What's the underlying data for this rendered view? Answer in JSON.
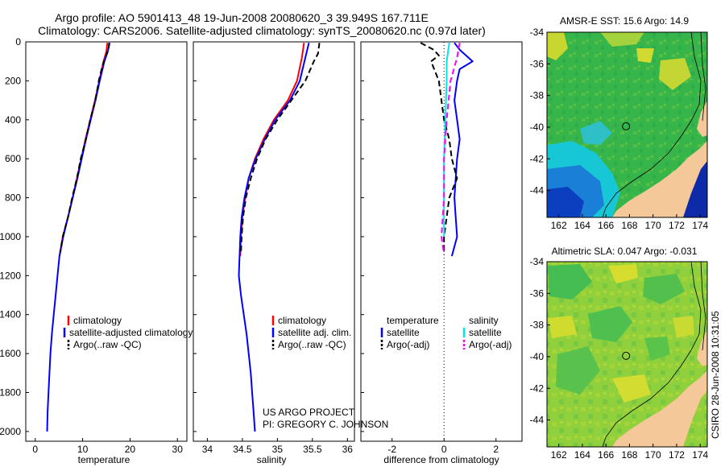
{
  "header": {
    "title_line1": "Argo profile: AO 5901413_48 19-Jun-2008 20080620_3 39.949S 167.711E",
    "title_line2": "Climatology: CARS2006. Satellite-adjusted climatology: synTS_20080620.nc (0.97d later)"
  },
  "credits": {
    "project": "US ARGO PROJECT",
    "pi": "PI: GREGORY C. JOHNSON",
    "stamp": "CSIRO 28-Jun-2008 10:31:05"
  },
  "colors": {
    "climatology": "#ff0000",
    "satellite": "#0000ff",
    "argo": "#000000",
    "sal_satellite": "#00e5e5",
    "sal_argo": "#ff00ff",
    "land": "#f5c89a"
  },
  "chart_data": [
    {
      "type": "line",
      "id": "temperature",
      "xlabel": "temperature",
      "ylabel": "",
      "xlim": [
        -2,
        32
      ],
      "ylim": [
        2050,
        0
      ],
      "x_ticks": [
        0,
        10,
        20,
        30
      ],
      "y_ticks": [
        0,
        200,
        400,
        600,
        800,
        1000,
        1200,
        1400,
        1600,
        1800,
        2000
      ],
      "legend": [
        "climatology",
        "satellite-adjusted climatology",
        "Argo(..raw -QC)"
      ],
      "series": [
        {
          "name": "climatology",
          "style": "solid",
          "color": "#ff0000",
          "points": [
            [
              15.2,
              5
            ],
            [
              15.0,
              50
            ],
            [
              14.4,
              100
            ],
            [
              13.5,
              200
            ],
            [
              12.6,
              300
            ],
            [
              11.6,
              400
            ],
            [
              10.6,
              500
            ],
            [
              9.7,
              600
            ],
            [
              8.8,
              700
            ],
            [
              7.9,
              800
            ],
            [
              6.9,
              900
            ],
            [
              5.8,
              1000
            ],
            [
              5.1,
              1100
            ]
          ]
        },
        {
          "name": "satellite-adjusted climatology",
          "style": "solid",
          "color": "#0000ff",
          "points": [
            [
              15.7,
              5
            ],
            [
              15.3,
              50
            ],
            [
              14.6,
              100
            ],
            [
              13.6,
              200
            ],
            [
              12.7,
              300
            ],
            [
              11.7,
              400
            ],
            [
              10.7,
              500
            ],
            [
              9.8,
              600
            ],
            [
              8.9,
              700
            ],
            [
              7.9,
              800
            ],
            [
              6.9,
              900
            ],
            [
              5.9,
              1000
            ],
            [
              5.1,
              1100
            ],
            [
              4.7,
              1200
            ],
            [
              4.3,
              1300
            ],
            [
              3.9,
              1400
            ],
            [
              3.5,
              1500
            ],
            [
              3.2,
              1600
            ],
            [
              3.0,
              1700
            ],
            [
              2.8,
              1800
            ],
            [
              2.6,
              1900
            ],
            [
              2.5,
              2000
            ]
          ]
        },
        {
          "name": "Argo(..raw -QC)",
          "style": "dash",
          "color": "#000000",
          "points": [
            [
              15.6,
              5
            ],
            [
              15.5,
              30
            ],
            [
              14.8,
              80
            ],
            [
              14.2,
              120
            ],
            [
              13.4,
              200
            ],
            [
              12.7,
              300
            ],
            [
              11.6,
              400
            ],
            [
              10.7,
              500
            ],
            [
              9.6,
              600
            ],
            [
              8.8,
              700
            ],
            [
              7.8,
              800
            ],
            [
              6.9,
              900
            ],
            [
              5.8,
              1000
            ],
            [
              5.3,
              1080
            ]
          ]
        }
      ]
    },
    {
      "type": "line",
      "id": "salinity",
      "xlabel": "salinity",
      "ylabel": "",
      "xlim": [
        33.8,
        36.1
      ],
      "ylim": [
        2050,
        0
      ],
      "x_ticks": [
        34,
        34.5,
        35,
        35.5,
        36
      ],
      "legend": [
        "climatology",
        "satellite adj. clim.",
        "Argo(..raw -QC)"
      ],
      "series": [
        {
          "name": "climatology",
          "style": "solid",
          "color": "#ff0000",
          "points": [
            [
              35.38,
              5
            ],
            [
              35.35,
              80
            ],
            [
              35.28,
              200
            ],
            [
              35.15,
              300
            ],
            [
              34.95,
              400
            ],
            [
              34.8,
              500
            ],
            [
              34.68,
              600
            ],
            [
              34.59,
              700
            ],
            [
              34.54,
              800
            ],
            [
              34.5,
              900
            ],
            [
              34.48,
              1000
            ],
            [
              34.47,
              1100
            ]
          ]
        },
        {
          "name": "satellite adj. clim.",
          "style": "solid",
          "color": "#0000ff",
          "points": [
            [
              35.45,
              5
            ],
            [
              35.4,
              80
            ],
            [
              35.32,
              200
            ],
            [
              35.18,
              300
            ],
            [
              34.97,
              400
            ],
            [
              34.82,
              500
            ],
            [
              34.69,
              600
            ],
            [
              34.59,
              700
            ],
            [
              34.53,
              800
            ],
            [
              34.49,
              900
            ],
            [
              34.47,
              1000
            ],
            [
              34.46,
              1100
            ],
            [
              34.45,
              1200
            ],
            [
              34.48,
              1300
            ],
            [
              34.52,
              1400
            ],
            [
              34.56,
              1500
            ],
            [
              34.59,
              1600
            ],
            [
              34.62,
              1700
            ],
            [
              34.64,
              1800
            ],
            [
              34.66,
              1900
            ],
            [
              34.68,
              2000
            ]
          ]
        },
        {
          "name": "Argo(..raw -QC)",
          "style": "dash",
          "color": "#000000",
          "points": [
            [
              35.6,
              5
            ],
            [
              35.58,
              60
            ],
            [
              35.52,
              100
            ],
            [
              35.4,
              200
            ],
            [
              35.2,
              300
            ],
            [
              35.0,
              400
            ],
            [
              34.83,
              500
            ],
            [
              34.71,
              600
            ],
            [
              34.62,
              700
            ],
            [
              34.55,
              800
            ],
            [
              34.51,
              900
            ],
            [
              34.49,
              1000
            ],
            [
              34.48,
              1080
            ]
          ]
        }
      ]
    },
    {
      "type": "line",
      "id": "difference",
      "xlabel": "difference from climatology",
      "ylabel": "",
      "xlim": [
        -3.2,
        3.0
      ],
      "ylim": [
        2050,
        0
      ],
      "x_ticks": [
        -2,
        0,
        2
      ],
      "legend_temperature_title": "temperature",
      "legend_salinity_title": "salinity",
      "legend": [
        "satellite",
        "Argo(-adj)",
        "satellite",
        "Argo(-adj)"
      ],
      "series": [
        {
          "name": "satellite",
          "group": "temperature",
          "style": "solid",
          "color": "#0000ff",
          "points": [
            [
              0.4,
              5
            ],
            [
              0.6,
              40
            ],
            [
              1.1,
              100
            ],
            [
              0.6,
              140
            ],
            [
              0.5,
              200
            ],
            [
              0.4,
              300
            ],
            [
              0.5,
              400
            ],
            [
              0.6,
              500
            ],
            [
              0.5,
              600
            ],
            [
              0.45,
              700
            ],
            [
              0.4,
              800
            ],
            [
              0.45,
              900
            ],
            [
              0.5,
              1000
            ],
            [
              0.3,
              1100
            ]
          ]
        },
        {
          "name": "Argo(-adj)",
          "group": "temperature",
          "style": "dash",
          "color": "#000000",
          "points": [
            [
              -0.9,
              5
            ],
            [
              -0.4,
              40
            ],
            [
              -0.2,
              70
            ],
            [
              -0.5,
              100
            ],
            [
              -0.2,
              200
            ],
            [
              -0.1,
              300
            ],
            [
              0.0,
              400
            ],
            [
              0.2,
              500
            ],
            [
              0.3,
              600
            ],
            [
              0.5,
              700
            ],
            [
              0.2,
              800
            ],
            [
              0.1,
              900
            ],
            [
              0.0,
              1000
            ],
            [
              0.0,
              1080
            ]
          ]
        },
        {
          "name": "satellite",
          "group": "salinity",
          "style": "solid",
          "color": "#00e5e5",
          "points": [
            [
              0.2,
              5
            ],
            [
              0.1,
              100
            ],
            [
              0.1,
              200
            ],
            [
              0.05,
              400
            ],
            [
              0.0,
              600
            ],
            [
              0.0,
              800
            ],
            [
              0.0,
              1000
            ]
          ]
        },
        {
          "name": "Argo(-adj)",
          "group": "salinity",
          "style": "dash",
          "color": "#ff00ff",
          "points": [
            [
              0.6,
              5
            ],
            [
              0.5,
              80
            ],
            [
              0.25,
              200
            ],
            [
              0.1,
              400
            ],
            [
              0.0,
              600
            ],
            [
              0.0,
              800
            ],
            [
              -0.1,
              1000
            ],
            [
              0.0,
              1090
            ]
          ]
        }
      ]
    },
    {
      "type": "heatmap",
      "id": "sst_map",
      "title": "AMSR-E SST: 15.6 Argo: 14.9",
      "x_ticks": [
        162,
        164,
        166,
        168,
        170,
        172,
        174
      ],
      "y_ticks": [
        -34,
        -36,
        -38,
        -40,
        -42,
        -44
      ],
      "xlim": [
        161,
        174.6
      ],
      "ylim": [
        -45.7,
        -34
      ],
      "argo_position": [
        167.711,
        -39.949
      ]
    },
    {
      "type": "heatmap",
      "id": "sla_map",
      "title": "Altimetric SLA: 0.047 Argo: -0.031",
      "x_ticks": [
        162,
        164,
        166,
        168,
        170,
        172,
        174
      ],
      "y_ticks": [
        -34,
        -36,
        -38,
        -40,
        -42,
        -44
      ],
      "xlim": [
        161,
        174.6
      ],
      "ylim": [
        -45.7,
        -34
      ],
      "argo_position": [
        167.711,
        -39.949
      ]
    }
  ]
}
